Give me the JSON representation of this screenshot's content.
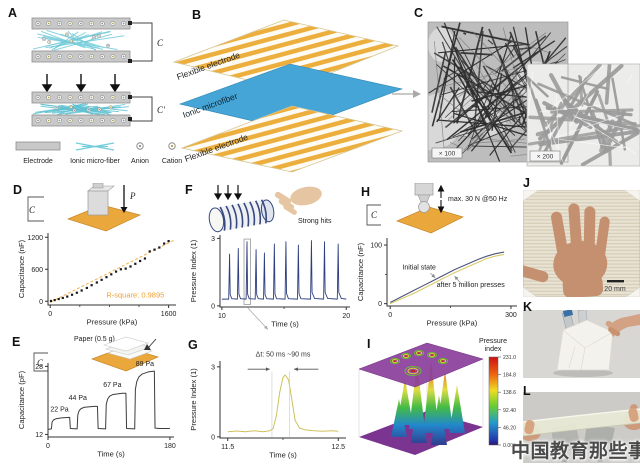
{
  "figure": {
    "watermark": "中国教育那些事"
  },
  "colors": {
    "accent_orange": "#eaa83c",
    "fiber_cyan": "#74ccda",
    "navy": "#2e3f7f",
    "olive": "#cfc05e",
    "purple": "#8a3f9b",
    "skin": "#c69072",
    "rsquare_orange": "#f0a030",
    "electrode_gray": "#c8c8c8",
    "blue_layer": "#45a5d6"
  },
  "panels": {
    "A": {
      "label": "A",
      "cap_top": "C",
      "cap_bottom": "C'",
      "legend": [
        "Electrode",
        "Ionic micro-fiber",
        "Anion",
        "Cation"
      ]
    },
    "B": {
      "label": "B",
      "layers": [
        "Flexible electrode",
        "Ionic microfiber",
        "Flexible electrode"
      ]
    },
    "C": {
      "label": "C",
      "magnifications": [
        "× 100",
        "× 200"
      ]
    },
    "D": {
      "label": "D",
      "inset": {
        "capacitor": "C",
        "pressure": "P"
      }
    },
    "E": {
      "label": "E",
      "inset": {
        "title": "Paper (0.5 g)",
        "capacitor": "C"
      }
    },
    "F": {
      "label": "F",
      "inset": {
        "caption": "Strong hits"
      }
    },
    "G": {
      "label": "G",
      "annotation": "Δt: 50 ms ~90 ms"
    },
    "H": {
      "label": "H",
      "inset": {
        "caption": "max. 30 N @50 Hz",
        "capacitor": "C"
      }
    },
    "I": {
      "label": "I",
      "colorbar": {
        "title_line1": "Pressure",
        "title_line2": "index",
        "ticks": [
          "231.0",
          "184.8",
          "138.6",
          "92.40",
          "46.20",
          "0.000"
        ]
      }
    },
    "J": {
      "label": "J",
      "scale_bar": "20 mm"
    },
    "K": {
      "label": "K"
    },
    "L": {
      "label": "L"
    }
  },
  "chart_data": [
    {
      "id": "D",
      "type": "scatter",
      "xlabel": "Pressure (kPa)",
      "ylabel": "Capacitance (nF)",
      "xlim": [
        -30,
        1700
      ],
      "ylim": [
        -70,
        1280
      ],
      "xticks": [
        0,
        1600
      ],
      "xminor": [
        400,
        800,
        1200
      ],
      "yticks": [
        0,
        600,
        1200
      ],
      "plot": {
        "l": 42,
        "t": 50,
        "w": 128,
        "h": 72
      },
      "series": [
        {
          "name": "linear fit",
          "type": "line",
          "color": "#f2b04a",
          "width": 1,
          "dash": "3,2",
          "points": [
            [
              0,
              -20
            ],
            [
              1680,
              1150
            ]
          ]
        },
        {
          "name": "capacitance",
          "type": "scatter",
          "color": "#1a1a1a",
          "size": 2.2,
          "points": [
            [
              10,
              5
            ],
            [
              60,
              22
            ],
            [
              115,
              42
            ],
            [
              170,
              62
            ],
            [
              230,
              88
            ],
            [
              295,
              122
            ],
            [
              360,
              160
            ],
            [
              425,
              202
            ],
            [
              495,
              250
            ],
            [
              560,
              302
            ],
            [
              630,
              352
            ],
            [
              695,
              402
            ],
            [
              760,
              452
            ],
            [
              825,
              505
            ],
            [
              890,
              556
            ],
            [
              955,
              600
            ],
            [
              1020,
              612
            ],
            [
              1085,
              652
            ],
            [
              1150,
              702
            ],
            [
              1215,
              755
            ],
            [
              1280,
              802
            ],
            [
              1345,
              935
            ],
            [
              1410,
              968
            ],
            [
              1475,
              1008
            ],
            [
              1540,
              1082
            ],
            [
              1600,
              1128
            ]
          ]
        }
      ],
      "texts": [
        {
          "x": 1150,
          "y": 75,
          "text": "R-square: 0.9895",
          "color": "#f0a030",
          "size": 7.5,
          "anchor": "middle"
        }
      ]
    },
    {
      "id": "E",
      "type": "line",
      "xlabel": "Time (s)",
      "ylabel": "Capacitance (pF)",
      "xlim": [
        0,
        186
      ],
      "ylim": [
        11.4,
        28.8
      ],
      "xticks": [
        0,
        180
      ],
      "yticks": [
        12,
        28
      ],
      "plot": {
        "l": 42,
        "t": 30,
        "w": 126,
        "h": 74
      },
      "series": [
        {
          "name": "capacitance",
          "type": "line",
          "color": "#3c3c3c",
          "width": 1,
          "points": [
            [
              0,
              13.2
            ],
            [
              5,
              13.3
            ],
            [
              6,
              14.9
            ],
            [
              8,
              15.4
            ],
            [
              12,
              15.7
            ],
            [
              20,
              15.9
            ],
            [
              32,
              16.0
            ],
            [
              33,
              13.4
            ],
            [
              43,
              13.3
            ],
            [
              44,
              16.6
            ],
            [
              46,
              17.6
            ],
            [
              49,
              18.1
            ],
            [
              54,
              18.4
            ],
            [
              68,
              18.6
            ],
            [
              73,
              18.6
            ],
            [
              74,
              13.4
            ],
            [
              85,
              13.3
            ],
            [
              86,
              19.1
            ],
            [
              88,
              20.3
            ],
            [
              91,
              21.0
            ],
            [
              96,
              21.4
            ],
            [
              110,
              21.7
            ],
            [
              115,
              21.7
            ],
            [
              116,
              13.4
            ],
            [
              128,
              13.3
            ],
            [
              129,
              22.6
            ],
            [
              131,
              24.4
            ],
            [
              134,
              25.5
            ],
            [
              139,
              26.2
            ],
            [
              148,
              26.7
            ],
            [
              157,
              26.9
            ],
            [
              158,
              13.5
            ],
            [
              165,
              13.4
            ],
            [
              180,
              13.4
            ]
          ]
        }
      ],
      "texts": [
        {
          "x": 17,
          "y": 17.4,
          "text": "22 Pa",
          "anchor": "middle",
          "size": 7,
          "color": "#222"
        },
        {
          "x": 44,
          "y": 20.1,
          "text": "44 Pa",
          "anchor": "middle",
          "size": 7,
          "color": "#222"
        },
        {
          "x": 95,
          "y": 23.1,
          "text": "67 Pa",
          "anchor": "middle",
          "size": 7,
          "color": "#222"
        },
        {
          "x": 143,
          "y": 28.1,
          "text": "89 Pa",
          "anchor": "middle",
          "size": 7,
          "color": "#222"
        }
      ]
    },
    {
      "id": "F",
      "type": "line",
      "xlabel": "Time (s)",
      "ylabel": "Pressure Index (1)",
      "xlim": [
        9.85,
        20.3
      ],
      "ylim": [
        -0.05,
        3.15
      ],
      "xticks": [
        10,
        20
      ],
      "xminor": [
        15
      ],
      "yticks": [
        0,
        3
      ],
      "plot": {
        "l": 38,
        "t": 52,
        "w": 130,
        "h": 72
      },
      "series": [
        {
          "name": "pressure index",
          "type": "line",
          "color": "#2e3f7f",
          "width": 0.9,
          "points": [
            [
              10,
              0.3
            ],
            [
              10.55,
              0.3
            ],
            [
              10.62,
              2.3
            ],
            [
              10.67,
              0.5
            ],
            [
              10.8,
              0.32
            ],
            [
              11.25,
              0.3
            ],
            [
              11.32,
              2.55
            ],
            [
              11.37,
              0.52
            ],
            [
              11.5,
              0.32
            ],
            [
              11.95,
              0.3
            ],
            [
              12.02,
              2.85
            ],
            [
              12.07,
              0.52
            ],
            [
              12.2,
              0.32
            ],
            [
              12.68,
              0.3
            ],
            [
              12.75,
              2.5
            ],
            [
              12.8,
              0.5
            ],
            [
              12.93,
              0.32
            ],
            [
              13.35,
              0.3
            ],
            [
              13.42,
              2.35
            ],
            [
              13.47,
              0.5
            ],
            [
              13.6,
              0.32
            ],
            [
              14.15,
              0.3
            ],
            [
              14.22,
              2.75
            ],
            [
              14.27,
              0.52
            ],
            [
              14.4,
              0.32
            ],
            [
              15.08,
              0.3
            ],
            [
              15.15,
              2.85
            ],
            [
              15.2,
              0.55
            ],
            [
              15.35,
              0.32
            ],
            [
              16.08,
              0.3
            ],
            [
              16.15,
              2.7
            ],
            [
              16.2,
              0.55
            ],
            [
              16.35,
              0.32
            ],
            [
              17.13,
              0.3
            ],
            [
              17.2,
              2.9
            ],
            [
              17.25,
              0.6
            ],
            [
              17.45,
              0.33
            ],
            [
              18.18,
              0.3
            ],
            [
              18.25,
              2.85
            ],
            [
              18.3,
              0.6
            ],
            [
              18.5,
              0.33
            ],
            [
              19.28,
              0.3
            ],
            [
              19.35,
              2.75
            ],
            [
              19.4,
              0.6
            ],
            [
              19.6,
              0.33
            ],
            [
              20,
              0.3
            ]
          ]
        }
      ],
      "boxes": [
        {
          "x1": 11.78,
          "x2": 12.3,
          "y1": 0.06,
          "y2": 2.97,
          "color": "#999999"
        }
      ],
      "lines": [
        {
          "x1": 12.1,
          "y1": -0.1,
          "x2": 13.7,
          "y2": -1.05,
          "arrow": "end",
          "color": "#aaaaaa",
          "width": 0.8
        }
      ]
    },
    {
      "id": "G",
      "type": "line",
      "xlabel": "Time (s)",
      "ylabel": "Pressure Index (1)",
      "xlim": [
        11.43,
        12.57
      ],
      "ylim": [
        -0.05,
        3.25
      ],
      "xticks": [
        11.5,
        12.5
      ],
      "xminor": [
        12
      ],
      "yticks": [
        0,
        3
      ],
      "plot": {
        "l": 38,
        "t": 26,
        "w": 126,
        "h": 77
      },
      "series": [
        {
          "name": "pressure index",
          "type": "line",
          "color": "#cfc05e",
          "width": 1,
          "points": [
            [
              11.5,
              0.22
            ],
            [
              11.58,
              0.25
            ],
            [
              11.66,
              0.22
            ],
            [
              11.74,
              0.26
            ],
            [
              11.82,
              0.22
            ],
            [
              11.88,
              0.26
            ],
            [
              11.91,
              0.35
            ],
            [
              11.94,
              0.9
            ],
            [
              11.97,
              1.9
            ],
            [
              12.0,
              2.55
            ],
            [
              12.02,
              2.65
            ],
            [
              12.05,
              2.45
            ],
            [
              12.08,
              1.6
            ],
            [
              12.11,
              0.7
            ],
            [
              12.15,
              0.38
            ],
            [
              12.2,
              0.3
            ],
            [
              12.28,
              0.26
            ],
            [
              12.36,
              0.24
            ],
            [
              12.44,
              0.26
            ],
            [
              12.5,
              0.24
            ]
          ]
        }
      ],
      "lines": [
        {
          "x1": 11.9,
          "y1": 2.8,
          "x2": 11.9,
          "y2": 0.0,
          "color": "#c9c9c9",
          "width": 0.6
        },
        {
          "x1": 12.06,
          "y1": 2.8,
          "x2": 12.06,
          "y2": 0.0,
          "color": "#c9c9c9",
          "width": 0.6
        },
        {
          "x1": 11.68,
          "y1": 2.9,
          "x2": 11.88,
          "y2": 2.9,
          "arrow": "end",
          "color": "#555555",
          "width": 0.8
        },
        {
          "x1": 12.32,
          "y1": 2.9,
          "x2": 12.1,
          "y2": 2.9,
          "arrow": "end",
          "color": "#555555",
          "width": 0.8
        }
      ],
      "texts": [
        {
          "x": 12.0,
          "y": 3.45,
          "text": "Δt: 50 ms ~90 ms",
          "anchor": "middle",
          "size": 7,
          "color": "#333"
        }
      ]
    },
    {
      "id": "H",
      "type": "line",
      "xlabel": "Pressure (kPa)",
      "ylabel": "Capacitance (nF)",
      "xlim": [
        -8,
        315
      ],
      "ylim": [
        -4,
        112
      ],
      "xticks": [
        0,
        300
      ],
      "xminor": [
        150
      ],
      "yticks": [
        0,
        100
      ],
      "yminor": [
        50
      ],
      "plot": {
        "l": 32,
        "t": 55,
        "w": 130,
        "h": 68
      },
      "series": [
        {
          "name": "Initial state",
          "type": "line",
          "color": "#4a5578",
          "width": 1.1,
          "points": [
            [
              0,
              2
            ],
            [
              20,
              9
            ],
            [
              40,
              16
            ],
            [
              60,
              23
            ],
            [
              80,
              30
            ],
            [
              100,
              37
            ],
            [
              120,
              44
            ],
            [
              140,
              51
            ],
            [
              160,
              58
            ],
            [
              180,
              64
            ],
            [
              200,
              70
            ],
            [
              220,
              76
            ],
            [
              240,
              81
            ],
            [
              260,
              85
            ],
            [
              283,
              88
            ]
          ]
        },
        {
          "name": "after 5 million presses",
          "type": "line",
          "color": "#d8c96a",
          "width": 1.1,
          "points": [
            [
              0,
              0
            ],
            [
              20,
              6
            ],
            [
              40,
              12
            ],
            [
              60,
              18
            ],
            [
              80,
              25
            ],
            [
              100,
              32
            ],
            [
              120,
              39
            ],
            [
              140,
              46
            ],
            [
              160,
              53
            ],
            [
              180,
              59
            ],
            [
              200,
              65
            ],
            [
              220,
              71
            ],
            [
              240,
              77
            ],
            [
              260,
              81
            ],
            [
              283,
              84
            ]
          ]
        }
      ],
      "lines": [
        {
          "x1": 100,
          "y1": 52,
          "x2": 112,
          "y2": 44,
          "arrow": "end",
          "color": "#888888",
          "width": 0.7
        },
        {
          "x1": 175,
          "y1": 35,
          "x2": 160,
          "y2": 47,
          "arrow": "end",
          "color": "#888888",
          "width": 0.7
        }
      ],
      "texts": [
        {
          "x": 72,
          "y": 58,
          "text": "Initial state",
          "anchor": "middle",
          "size": 7,
          "color": "#222"
        },
        {
          "x": 200,
          "y": 28,
          "text": "after 5 million presses",
          "anchor": "middle",
          "size": 7,
          "color": "#222"
        }
      ]
    },
    {
      "id": "I",
      "type": "heatmap",
      "title": "Pressure index",
      "colorbar_ticks": [
        231.0,
        184.8,
        138.6,
        92.4,
        46.2,
        0.0
      ],
      "description": "3D pressure-index map of a hand press on the sensor array"
    }
  ]
}
